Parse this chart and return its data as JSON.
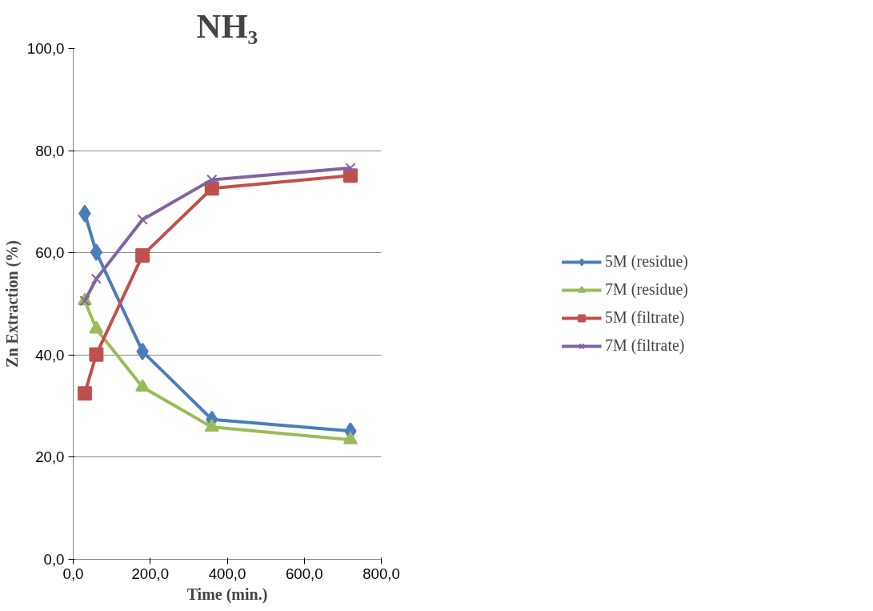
{
  "chart_data": {
    "type": "line",
    "title": "NH₃",
    "xlabel": "Time (min.)",
    "ylabel": "Zn Extraction (%)",
    "x": [
      30,
      60,
      180,
      360,
      720
    ],
    "series": [
      {
        "name": "5M (residue)",
        "color": "#4a7ebb",
        "marker": "diamond",
        "values": [
          67.7,
          60.1,
          40.7,
          27.4,
          25.1
        ]
      },
      {
        "name": "7M (residue)",
        "color": "#9bbb59",
        "marker": "triangle",
        "values": [
          50.6,
          45.1,
          33.7,
          25.9,
          23.4
        ]
      },
      {
        "name": "5M (filtrate)",
        "color": "#c0504d",
        "marker": "square",
        "values": [
          32.5,
          40.1,
          59.5,
          72.6,
          75.1
        ]
      },
      {
        "name": "7M (filtrate)",
        "color": "#8064a2",
        "marker": "cross",
        "values": [
          50.6,
          54.9,
          66.5,
          74.3,
          76.6
        ]
      }
    ],
    "xlim": [
      0,
      800
    ],
    "xticks": [
      {
        "value": 0,
        "label": "0,0"
      },
      {
        "value": 200,
        "label": "200,0"
      },
      {
        "value": 400,
        "label": "400,0"
      },
      {
        "value": 600,
        "label": "600,0"
      },
      {
        "value": 800,
        "label": "800,0"
      }
    ],
    "ylim": [
      0,
      100
    ],
    "yticks": [
      {
        "value": 0,
        "label": "0,0"
      },
      {
        "value": 20,
        "label": "20,0"
      },
      {
        "value": 40,
        "label": "40,0"
      },
      {
        "value": 60,
        "label": "60,0"
      },
      {
        "value": 80,
        "label": "80,0"
      },
      {
        "value": 100,
        "label": "100,0"
      }
    ],
    "grid": "y",
    "legend": "right",
    "line_style": "solid"
  }
}
